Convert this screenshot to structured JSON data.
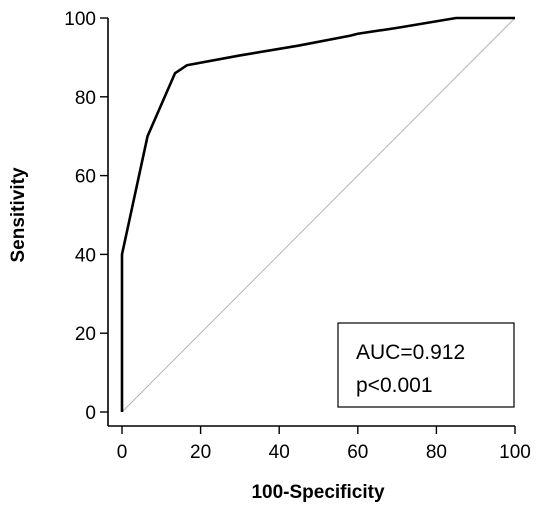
{
  "chart_data": {
    "type": "line",
    "title": "",
    "xlabel": "100-Specificity",
    "ylabel": "Sensitivity",
    "xlim": [
      0,
      100
    ],
    "ylim": [
      0,
      100
    ],
    "x_ticks": [
      0,
      20,
      40,
      60,
      80,
      100
    ],
    "y_ticks": [
      0,
      20,
      40,
      60,
      80,
      100
    ],
    "grid": false,
    "legend": "none",
    "series": [
      {
        "x": [
          0,
          0,
          6.5,
          13.5,
          16.5,
          30,
          45,
          58,
          60,
          70,
          85,
          100
        ],
        "y": [
          0,
          40,
          70,
          86,
          88,
          90.5,
          93,
          95.5,
          96,
          97.5,
          100,
          100
        ],
        "color": "#000000"
      },
      {
        "x": [
          0,
          100
        ],
        "y": [
          0,
          100
        ],
        "color": "#b5b5b5"
      }
    ],
    "annotations": {
      "auc_text": "AUC=0.912",
      "p_text": "p<0.001"
    }
  }
}
